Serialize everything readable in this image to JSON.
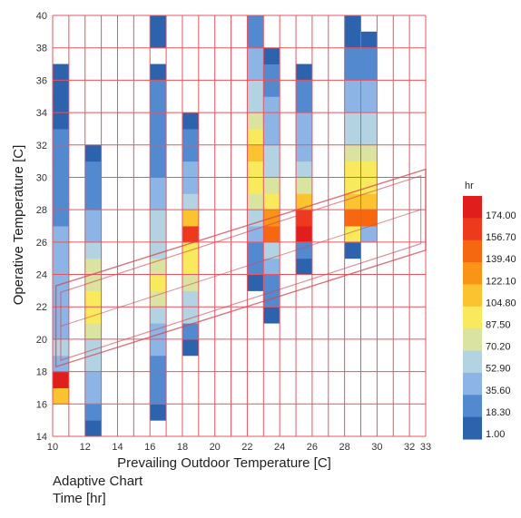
{
  "chart_data": {
    "type": "heatmap",
    "xlabel": "Prevailing Outdoor Temperature [C]",
    "ylabel": "Operative Temperature [C]",
    "xlim": [
      10,
      33
    ],
    "ylim": [
      14,
      40
    ],
    "x_ticks": [
      10,
      12,
      14,
      16,
      18,
      20,
      22,
      24,
      26,
      28,
      30,
      32,
      33
    ],
    "y_ticks": [
      14,
      16,
      18,
      20,
      22,
      24,
      26,
      28,
      30,
      32,
      34,
      36,
      38,
      40
    ],
    "grid": true,
    "grid_color": "#e85560",
    "cell_height": 1,
    "columns": [
      {
        "x": [
          10,
          11
        ],
        "cells": [
          {
            "y": 16,
            "v": 100
          },
          {
            "y": 17,
            "v": 175
          },
          {
            "y": 18,
            "v": 40
          },
          {
            "y": 19,
            "v": 45
          },
          {
            "y": 20,
            "v": 42
          },
          {
            "y": 21,
            "v": 38
          },
          {
            "y": 22,
            "v": 35
          },
          {
            "y": 23,
            "v": 32
          },
          {
            "y": 24,
            "v": 40
          },
          {
            "y": 25,
            "v": 35
          },
          {
            "y": 26,
            "v": 30
          },
          {
            "y": 27,
            "v": 25
          },
          {
            "y": 28,
            "v": 22
          },
          {
            "y": 29,
            "v": 18
          },
          {
            "y": 30,
            "v": 15
          },
          {
            "y": 31,
            "v": 12
          },
          {
            "y": 32,
            "v": 10
          },
          {
            "y": 33,
            "v": 8
          },
          {
            "y": 34,
            "v": 6
          },
          {
            "y": 35,
            "v": 5
          },
          {
            "y": 36,
            "v": 3
          }
        ]
      },
      {
        "x": [
          12,
          13
        ],
        "cells": [
          {
            "y": 14,
            "v": 5
          },
          {
            "y": 15,
            "v": 18
          },
          {
            "y": 16,
            "v": 28
          },
          {
            "y": 17,
            "v": 35
          },
          {
            "y": 18,
            "v": 45
          },
          {
            "y": 19,
            "v": 55
          },
          {
            "y": 20,
            "v": 70
          },
          {
            "y": 21,
            "v": 80
          },
          {
            "y": 22,
            "v": 95
          },
          {
            "y": 23,
            "v": 75
          },
          {
            "y": 24,
            "v": 65
          },
          {
            "y": 25,
            "v": 50
          },
          {
            "y": 26,
            "v": 40
          },
          {
            "y": 27,
            "v": 30
          },
          {
            "y": 28,
            "v": 20
          },
          {
            "y": 29,
            "v": 15
          },
          {
            "y": 30,
            "v": 10
          },
          {
            "y": 31,
            "v": 5
          }
        ]
      },
      {
        "x": [
          16,
          17
        ],
        "cells": [
          {
            "y": 15,
            "v": 5
          },
          {
            "y": 16,
            "v": 12
          },
          {
            "y": 17,
            "v": 18
          },
          {
            "y": 18,
            "v": 22
          },
          {
            "y": 19,
            "v": 28
          },
          {
            "y": 20,
            "v": 38
          },
          {
            "y": 21,
            "v": 50
          },
          {
            "y": 22,
            "v": 70
          },
          {
            "y": 23,
            "v": 85
          },
          {
            "y": 24,
            "v": 75
          },
          {
            "y": 25,
            "v": 60
          },
          {
            "y": 26,
            "v": 50
          },
          {
            "y": 27,
            "v": 45
          },
          {
            "y": 28,
            "v": 35
          },
          {
            "y": 29,
            "v": 30
          },
          {
            "y": 30,
            "v": 25
          },
          {
            "y": 31,
            "v": 22
          },
          {
            "y": 32,
            "v": 18
          },
          {
            "y": 33,
            "v": 15
          },
          {
            "y": 34,
            "v": 12
          },
          {
            "y": 35,
            "v": 10
          },
          {
            "y": 36,
            "v": 5
          },
          {
            "y": 38,
            "v": 3
          },
          {
            "y": 39,
            "v": 3
          }
        ]
      },
      {
        "x": [
          18,
          19
        ],
        "cells": [
          {
            "y": 19,
            "v": 8
          },
          {
            "y": 20,
            "v": 25
          },
          {
            "y": 21,
            "v": 45
          },
          {
            "y": 22,
            "v": 55
          },
          {
            "y": 23,
            "v": 70
          },
          {
            "y": 24,
            "v": 85
          },
          {
            "y": 25,
            "v": 95
          },
          {
            "y": 26,
            "v": 150
          },
          {
            "y": 27,
            "v": 105
          },
          {
            "y": 28,
            "v": 45
          },
          {
            "y": 29,
            "v": 40
          },
          {
            "y": 30,
            "v": 30
          },
          {
            "y": 31,
            "v": 25
          },
          {
            "y": 32,
            "v": 15
          },
          {
            "y": 33,
            "v": 5
          }
        ]
      },
      {
        "x": [
          22,
          23
        ],
        "cells": [
          {
            "y": 23,
            "v": 5
          },
          {
            "y": 24,
            "v": 15
          },
          {
            "y": 25,
            "v": 25
          },
          {
            "y": 26,
            "v": 35
          },
          {
            "y": 27,
            "v": 55
          },
          {
            "y": 28,
            "v": 70
          },
          {
            "y": 29,
            "v": 85
          },
          {
            "y": 30,
            "v": 90
          },
          {
            "y": 31,
            "v": 100
          },
          {
            "y": 32,
            "v": 95
          },
          {
            "y": 33,
            "v": 65
          },
          {
            "y": 34,
            "v": 55
          },
          {
            "y": 35,
            "v": 45
          },
          {
            "y": 36,
            "v": 38
          },
          {
            "y": 37,
            "v": 30
          },
          {
            "y": 38,
            "v": 22
          },
          {
            "y": 39,
            "v": 12
          }
        ]
      },
      {
        "x": [
          23,
          24
        ],
        "cells": [
          {
            "y": 21,
            "v": 5
          },
          {
            "y": 22,
            "v": 15
          },
          {
            "y": 23,
            "v": 25
          },
          {
            "y": 24,
            "v": 30
          },
          {
            "y": 25,
            "v": 45
          },
          {
            "y": 26,
            "v": 140
          },
          {
            "y": 27,
            "v": 130
          },
          {
            "y": 28,
            "v": 95
          },
          {
            "y": 29,
            "v": 70
          },
          {
            "y": 30,
            "v": 60
          },
          {
            "y": 31,
            "v": 50
          },
          {
            "y": 32,
            "v": 40
          },
          {
            "y": 33,
            "v": 35
          },
          {
            "y": 34,
            "v": 28
          },
          {
            "y": 35,
            "v": 22
          },
          {
            "y": 36,
            "v": 15
          },
          {
            "y": 37,
            "v": 5
          }
        ]
      },
      {
        "x": [
          25,
          26
        ],
        "cells": [
          {
            "y": 24,
            "v": 5
          },
          {
            "y": 25,
            "v": 25
          },
          {
            "y": 26,
            "v": 170
          },
          {
            "y": 27,
            "v": 165
          },
          {
            "y": 28,
            "v": 110
          },
          {
            "y": 29,
            "v": 70
          },
          {
            "y": 30,
            "v": 55
          },
          {
            "y": 31,
            "v": 40
          },
          {
            "y": 32,
            "v": 35
          },
          {
            "y": 33,
            "v": 28
          },
          {
            "y": 34,
            "v": 22
          },
          {
            "y": 35,
            "v": 15
          },
          {
            "y": 36,
            "v": 5
          }
        ]
      },
      {
        "x": [
          28,
          29
        ],
        "cells": [
          {
            "y": 25,
            "v": 5
          },
          {
            "y": 26,
            "v": 95
          },
          {
            "y": 27,
            "v": 140
          },
          {
            "y": 28,
            "v": 100
          },
          {
            "y": 29,
            "v": 90
          },
          {
            "y": 30,
            "v": 85
          },
          {
            "y": 31,
            "v": 75
          },
          {
            "y": 32,
            "v": 60
          },
          {
            "y": 33,
            "v": 45
          },
          {
            "y": 34,
            "v": 35
          },
          {
            "y": 35,
            "v": 28
          },
          {
            "y": 36,
            "v": 22
          },
          {
            "y": 37,
            "v": 15
          },
          {
            "y": 38,
            "v": 8
          },
          {
            "y": 39,
            "v": 3
          }
        ]
      },
      {
        "x": [
          29,
          30
        ],
        "cells": [
          {
            "y": 26,
            "v": 35
          },
          {
            "y": 27,
            "v": 140
          },
          {
            "y": 28,
            "v": 105
          },
          {
            "y": 29,
            "v": 95
          },
          {
            "y": 30,
            "v": 85
          },
          {
            "y": 31,
            "v": 70
          },
          {
            "y": 32,
            "v": 60
          },
          {
            "y": 33,
            "v": 50
          },
          {
            "y": 34,
            "v": 40
          },
          {
            "y": 35,
            "v": 30
          },
          {
            "y": 36,
            "v": 20
          },
          {
            "y": 37,
            "v": 12
          },
          {
            "y": 38,
            "v": 5
          }
        ]
      }
    ],
    "comfort_band": {
      "outer": [
        [
          10.2,
          18.3
        ],
        [
          33,
          25.5
        ],
        [
          33,
          30.5
        ],
        [
          10.2,
          23.3
        ]
      ],
      "inner": [
        [
          10.5,
          18.7
        ],
        [
          32.7,
          25.9
        ],
        [
          32.7,
          30.1
        ],
        [
          10.5,
          22.9
        ]
      ],
      "neutral_line": [
        [
          10.5,
          20.8
        ],
        [
          32.7,
          28.0
        ]
      ],
      "color": "#d44550"
    },
    "legend": {
      "title": "hr",
      "placement": "right",
      "labels": [
        "174.00",
        "156.70",
        "139.40",
        "122.10",
        "104.80",
        "87.50",
        "70.20",
        "52.90",
        "35.60",
        "18.30",
        "1.00"
      ],
      "range": [
        1,
        174
      ],
      "colors": [
        "#2d62ad",
        "#5389cf",
        "#8cb5e6",
        "#b3d2e2",
        "#dbe3a0",
        "#f8ea5c",
        "#fbc330",
        "#fa9416",
        "#f56810",
        "#ee3a1c",
        "#e01f1c"
      ]
    }
  },
  "caption": {
    "title": "Adaptive Chart",
    "subtitle": "Time [hr]"
  }
}
